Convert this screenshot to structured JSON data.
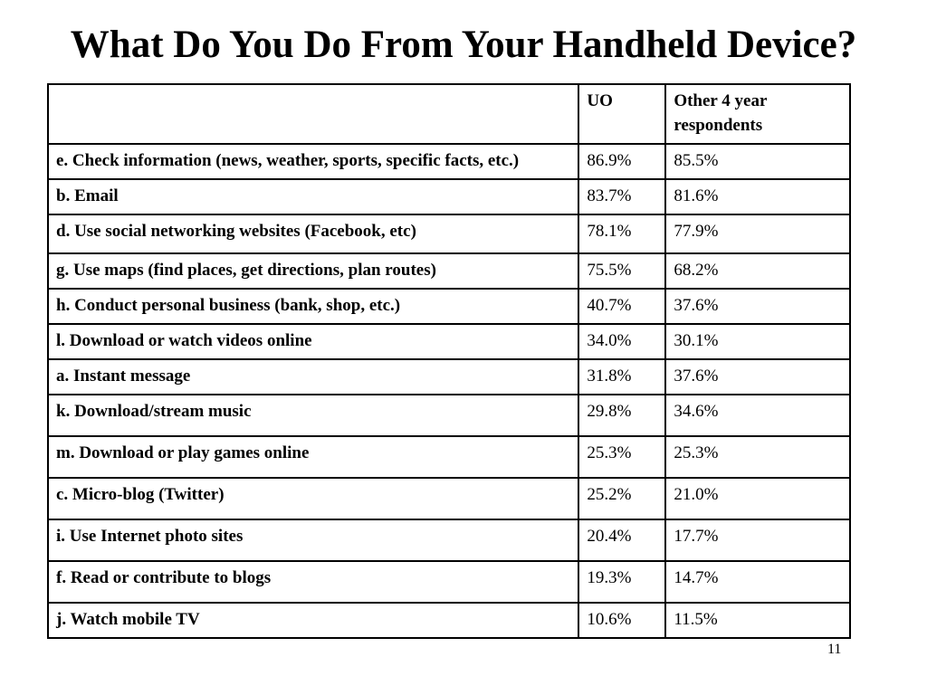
{
  "title": "What Do You Do From Your Handheld Device?",
  "table": {
    "columns": [
      "",
      "UO",
      "Other 4 year respondents"
    ],
    "rows": [
      {
        "activity": "e. Check information (news, weather, sports, specific facts, etc.)",
        "uo": "86.9%",
        "other": "85.5%"
      },
      {
        "activity": "b. Email",
        "uo": "83.7%",
        "other": "81.6%"
      },
      {
        "activity": "d. Use social networking websites (Facebook, etc)",
        "uo": "78.1%",
        "other": "77.9%"
      },
      {
        "activity": "g. Use maps (find places, get directions, plan routes)",
        "uo": "75.5%",
        "other": "68.2%"
      },
      {
        "activity": "h. Conduct personal business (bank, shop, etc.)",
        "uo": "40.7%",
        "other": "37.6%"
      },
      {
        "activity": "l. Download or watch videos online",
        "uo": "34.0%",
        "other": "30.1%"
      },
      {
        "activity": "a. Instant message",
        "uo": "31.8%",
        "other": "37.6%"
      },
      {
        "activity": "k. Download/stream music",
        "uo": "29.8%",
        "other": "34.6%"
      },
      {
        "activity": "m. Download or play games online",
        "uo": "25.3%",
        "other": "25.3%"
      },
      {
        "activity": "c. Micro-blog (Twitter)",
        "uo": "25.2%",
        "other": "21.0%"
      },
      {
        "activity": "i. Use Internet photo sites",
        "uo": "20.4%",
        "other": "17.7%"
      },
      {
        "activity": "f. Read or contribute to blogs",
        "uo": "19.3%",
        "other": "14.7%"
      },
      {
        "activity": "j. Watch mobile TV",
        "uo": "10.6%",
        "other": "11.5%"
      }
    ]
  },
  "slide_number": "11"
}
